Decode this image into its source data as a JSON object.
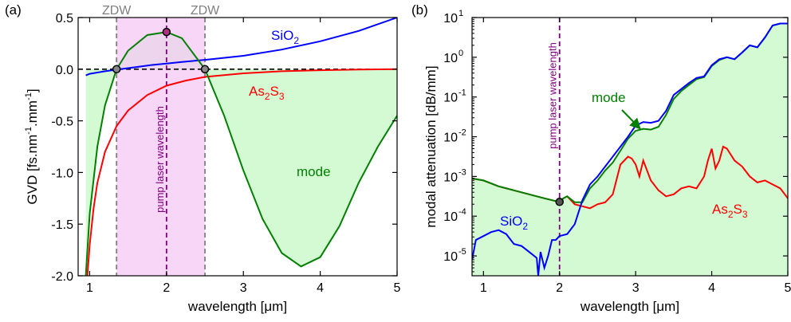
{
  "chart_data": [
    {
      "panel_label": "(a)",
      "type": "line",
      "xlabel": "wavelength [μm]",
      "ylabel_main": "GVD [fs.nm",
      "ylabel_exp1": "-1",
      "ylabel_mid": ".mm",
      "ylabel_exp2": "-1",
      "ylabel_end": "]",
      "xlim": [
        0.85,
        5
      ],
      "ylim": [
        -2.0,
        0.5
      ],
      "x_ticks": [
        1,
        2,
        3,
        4,
        5
      ],
      "x_tick_labels": [
        "1",
        "2",
        "3",
        "4",
        "5"
      ],
      "y_ticks": [
        0.5,
        0.0,
        -0.5,
        -1.0,
        -1.5,
        -2.0
      ],
      "y_tick_labels": [
        "0.5",
        "0.0",
        "-0.5",
        "-1.0",
        "-1.5",
        "-2.0"
      ],
      "zdw_positions": [
        1.35,
        2.5
      ],
      "zdw_label": "ZDW",
      "pump_wavelength": 2.0,
      "pump_label": "pump laser wavelength",
      "series": [
        {
          "name": "SiO",
          "name_sub": "2",
          "color": "#0000ff",
          "x": [
            0.95,
            1.0,
            1.2,
            1.4,
            1.6,
            1.8,
            2.0,
            2.2,
            2.5,
            3.0,
            3.5,
            4.0,
            4.5,
            5.0
          ],
          "y": [
            -0.06,
            -0.045,
            -0.02,
            0.0,
            0.02,
            0.04,
            0.055,
            0.07,
            0.09,
            0.13,
            0.19,
            0.27,
            0.37,
            0.5
          ]
        },
        {
          "name": "As",
          "name_sub": "2",
          "name_mid": "S",
          "name_sub2": "3",
          "color": "#ff0000",
          "x": [
            0.97,
            1.0,
            1.05,
            1.1,
            1.2,
            1.35,
            1.5,
            1.75,
            2.0,
            2.25,
            2.5,
            3.0,
            3.5,
            4.0,
            4.5,
            5.0
          ],
          "y": [
            -2.0,
            -1.7,
            -1.35,
            -1.1,
            -0.8,
            -0.55,
            -0.4,
            -0.25,
            -0.16,
            -0.11,
            -0.075,
            -0.04,
            -0.02,
            -0.01,
            -0.004,
            0.0
          ]
        },
        {
          "name": "mode",
          "color": "#008000",
          "fill": "#d4fad4",
          "x": [
            0.95,
            1.0,
            1.1,
            1.2,
            1.35,
            1.5,
            1.75,
            2.0,
            2.2,
            2.5,
            2.75,
            3.0,
            3.25,
            3.5,
            3.75,
            4.0,
            4.25,
            4.5,
            4.75,
            5.0
          ],
          "y": [
            -2.0,
            -1.4,
            -0.75,
            -0.35,
            0.0,
            0.18,
            0.33,
            0.36,
            0.3,
            0.0,
            -0.45,
            -0.98,
            -1.45,
            -1.78,
            -1.91,
            -1.82,
            -1.52,
            -1.1,
            -0.75,
            -0.45
          ]
        }
      ],
      "points": [
        {
          "x": 1.35,
          "y": 0.0
        },
        {
          "x": 2.0,
          "y": 0.36
        },
        {
          "x": 2.5,
          "y": 0.0
        }
      ],
      "colors": {
        "pump_band": "#f6c8f6",
        "zdw": "#808080",
        "pump_line": "#800080"
      }
    },
    {
      "panel_label": "(b)",
      "type": "line",
      "xlabel": "wavelength [μm]",
      "ylabel": "modal attenuation [dB/mm]",
      "xlim": [
        0.85,
        5
      ],
      "ylim_log10": [
        -5.5,
        1
      ],
      "y_scale": "log",
      "x_ticks": [
        1,
        2,
        3,
        4,
        5
      ],
      "x_tick_labels": [
        "1",
        "2",
        "3",
        "4",
        "5"
      ],
      "y_ticks_log10": [
        1,
        0,
        -1,
        -2,
        -3,
        -4,
        -5
      ],
      "y_tick_base": "10",
      "y_tick_exps": [
        "1",
        "0",
        "-1",
        "-2",
        "-3",
        "-4",
        "-5"
      ],
      "pump_wavelength": 2.0,
      "pump_label": "pump laser wavelength",
      "mode_annotation": "mode",
      "series": [
        {
          "name": "SiO",
          "name_sub": "2",
          "color": "#0000ff",
          "x": [
            0.85,
            0.9,
            1.0,
            1.1,
            1.2,
            1.3,
            1.4,
            1.5,
            1.6,
            1.7,
            1.72,
            1.75,
            1.8,
            1.85,
            1.9,
            1.95,
            2.0,
            2.1,
            2.2,
            2.3,
            2.4,
            2.5,
            2.6,
            2.7,
            2.8,
            2.9,
            3.0,
            3.1,
            3.2,
            3.3,
            3.4,
            3.5,
            3.6,
            3.7,
            3.8,
            3.9,
            4.0,
            4.1,
            4.2,
            4.3,
            4.4,
            4.5,
            4.6,
            4.7,
            4.8,
            4.9,
            5.0
          ],
          "y_log10": [
            -5.1,
            -4.6,
            -4.5,
            -4.4,
            -4.35,
            -4.45,
            -4.7,
            -4.75,
            -4.9,
            -5.05,
            -5.5,
            -4.9,
            -5.3,
            -5.0,
            -4.6,
            -4.6,
            -4.5,
            -4.45,
            -4.2,
            -3.6,
            -3.2,
            -3.0,
            -2.75,
            -2.5,
            -2.25,
            -2.0,
            -1.72,
            -1.63,
            -1.65,
            -1.6,
            -1.35,
            -0.95,
            -0.8,
            -0.65,
            -0.52,
            -0.48,
            -0.2,
            -0.05,
            0.0,
            -0.05,
            0.12,
            0.3,
            0.25,
            0.5,
            0.8,
            0.85,
            0.85
          ]
        },
        {
          "name": "As",
          "name_sub": "2",
          "name_mid": "S",
          "name_sub2": "3",
          "color": "#ff0000",
          "x": [
            0.85,
            1.0,
            1.2,
            1.4,
            1.6,
            1.8,
            1.95,
            2.0,
            2.05,
            2.1,
            2.2,
            2.3,
            2.4,
            2.5,
            2.6,
            2.7,
            2.8,
            2.9,
            2.95,
            3.0,
            3.05,
            3.1,
            3.2,
            3.3,
            3.4,
            3.5,
            3.6,
            3.7,
            3.8,
            3.9,
            3.95,
            4.0,
            4.05,
            4.1,
            4.15,
            4.2,
            4.3,
            4.4,
            4.5,
            4.6,
            4.7,
            4.8,
            4.9,
            5.0
          ],
          "y_log10": [
            -3.05,
            -3.1,
            -3.25,
            -3.35,
            -3.45,
            -3.55,
            -3.62,
            -3.64,
            -3.55,
            -3.5,
            -3.7,
            -3.75,
            -3.8,
            -3.7,
            -3.65,
            -3.45,
            -2.7,
            -2.5,
            -2.55,
            -2.7,
            -3.0,
            -2.6,
            -3.1,
            -3.35,
            -3.5,
            -3.45,
            -3.3,
            -3.25,
            -3.3,
            -3.0,
            -2.6,
            -2.3,
            -2.8,
            -2.6,
            -2.25,
            -2.3,
            -2.6,
            -2.75,
            -3.0,
            -3.15,
            -3.1,
            -3.2,
            -3.3,
            -3.55
          ]
        },
        {
          "name": "mode",
          "color": "#008000",
          "fill": "#d4fad4",
          "x": [
            0.85,
            1.0,
            1.2,
            1.4,
            1.6,
            1.8,
            1.95,
            2.0,
            2.05,
            2.1,
            2.2,
            2.3,
            2.4,
            2.5,
            2.6,
            2.7,
            2.8,
            2.9,
            3.0,
            3.1,
            3.2,
            3.3,
            3.4,
            3.5,
            3.6,
            3.7,
            3.8,
            3.9,
            4.0,
            4.1,
            4.2,
            4.3,
            4.4,
            4.5,
            4.6,
            4.7,
            4.8,
            4.9,
            5.0
          ],
          "y_log10": [
            -3.05,
            -3.1,
            -3.25,
            -3.35,
            -3.45,
            -3.55,
            -3.62,
            -3.64,
            -3.55,
            -3.5,
            -3.65,
            -3.65,
            -3.3,
            -3.1,
            -2.85,
            -2.65,
            -2.35,
            -2.05,
            -1.85,
            -1.8,
            -1.82,
            -1.75,
            -1.45,
            -1.05,
            -0.85,
            -0.7,
            -0.55,
            -0.5,
            -0.22,
            -0.07,
            0.0,
            -0.05,
            0.12,
            0.3,
            0.25,
            0.5,
            0.8,
            0.85,
            0.85
          ]
        }
      ],
      "points": [
        {
          "x": 2.0,
          "y_log10": -3.64
        }
      ],
      "colors": {
        "pump_line": "#800080"
      }
    }
  ]
}
